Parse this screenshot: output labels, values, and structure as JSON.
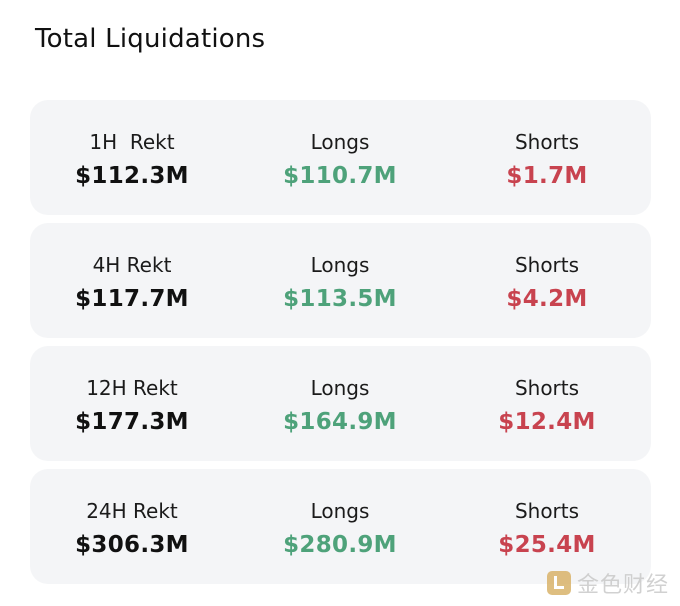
{
  "header": {
    "title": "Total Liquidations"
  },
  "rows": [
    {
      "period_label": "1H  Rekt",
      "total": "$112.3M",
      "longs_label": "Longs",
      "longs": "$110.7M",
      "shorts_label": "Shorts",
      "shorts": "$1.7M"
    },
    {
      "period_label": "4H Rekt",
      "total": "$117.7M",
      "longs_label": "Longs",
      "longs": "$113.5M",
      "shorts_label": "Shorts",
      "shorts": "$4.2M"
    },
    {
      "period_label": "12H Rekt",
      "total": "$177.3M",
      "longs_label": "Longs",
      "longs": "$164.9M",
      "shorts_label": "Shorts",
      "shorts": "$12.4M"
    },
    {
      "period_label": "24H Rekt",
      "total": "$306.3M",
      "longs_label": "Longs",
      "longs": "$280.9M",
      "shorts_label": "Shorts",
      "shorts": "$25.4M"
    }
  ],
  "colors": {
    "long": "#4ea27a",
    "short": "#c8434f",
    "card_background": "#f4f5f7"
  },
  "watermark": {
    "text": "金色财经",
    "icon": "golden-finance-logo-icon"
  }
}
